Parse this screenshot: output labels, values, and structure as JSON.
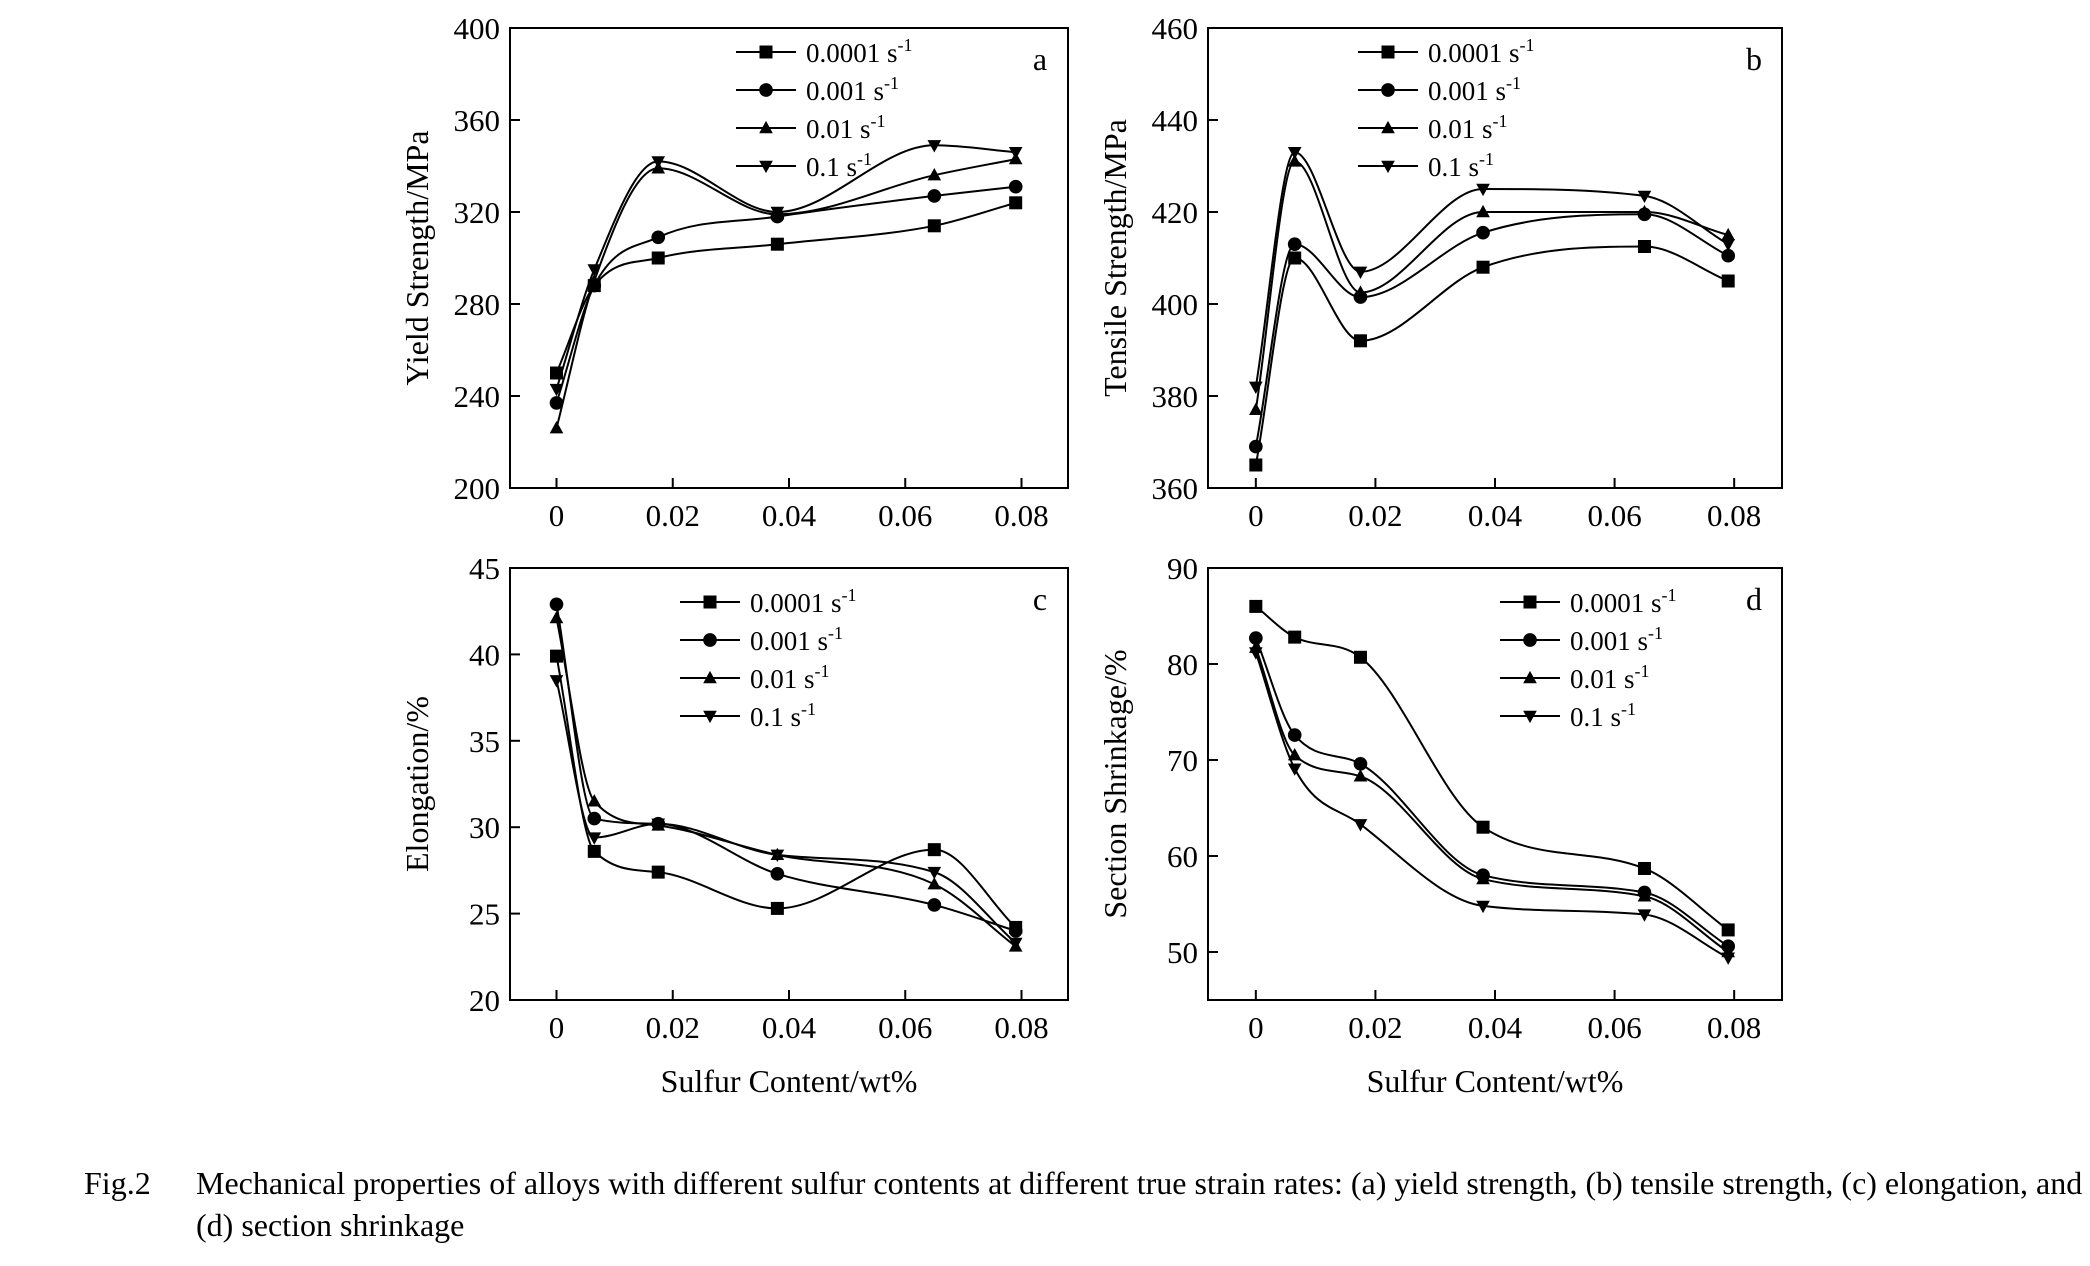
{
  "caption": {
    "label": "Fig.2",
    "text": "Mechanical properties of alloys with different sulfur contents at different true strain rates: (a) yield strength, (b) tensile strength, (c) elongation, and (d) section shrinkage"
  },
  "legend_entries": [
    "0.0001 s",
    "0.001 s",
    "0.01 s",
    "0.1 s"
  ],
  "legend_superscript": "-1",
  "chart_data": [
    {
      "type": "line",
      "panel_label": "a",
      "ylabel": "Yield Strength/MPa",
      "xlabel": "",
      "xlim": [
        -0.008,
        0.088
      ],
      "ylim": [
        200,
        400
      ],
      "xticks": [
        0,
        0.02,
        0.04,
        0.06,
        0.08
      ],
      "xtick_labels": [
        "0",
        "0.02",
        "0.04",
        "0.06",
        "0.08"
      ],
      "yticks": [
        200,
        240,
        280,
        320,
        360,
        400
      ],
      "ytick_labels": [
        "200",
        "240",
        "280",
        "320",
        "360",
        "400"
      ],
      "x": [
        0,
        0.0065,
        0.0175,
        0.038,
        0.065,
        0.079
      ],
      "series": [
        {
          "name": "0.0001 s-1",
          "marker": "square",
          "values": [
            250,
            288,
            300,
            306,
            314,
            324
          ]
        },
        {
          "name": "0.001 s-1",
          "marker": "circle",
          "values": [
            237,
            288,
            309,
            318,
            327,
            331
          ]
        },
        {
          "name": "0.01 s-1",
          "marker": "triangle-up",
          "values": [
            226,
            290,
            339,
            319,
            336,
            343
          ]
        },
        {
          "name": "0.1 s-1",
          "marker": "triangle-down",
          "values": [
            243,
            295,
            342,
            320,
            349,
            346
          ]
        }
      ],
      "legend_position": "top-center"
    },
    {
      "type": "line",
      "panel_label": "b",
      "ylabel": "Tensile Strength/MPa",
      "xlabel": "",
      "xlim": [
        -0.008,
        0.088
      ],
      "ylim": [
        360,
        460
      ],
      "xticks": [
        0,
        0.02,
        0.04,
        0.06,
        0.08
      ],
      "xtick_labels": [
        "0",
        "0.02",
        "0.04",
        "0.06",
        "0.08"
      ],
      "yticks": [
        360,
        380,
        400,
        420,
        440,
        460
      ],
      "ytick_labels": [
        "360",
        "380",
        "400",
        "420",
        "440",
        "460"
      ],
      "x": [
        0,
        0.0065,
        0.0175,
        0.038,
        0.065,
        0.079
      ],
      "series": [
        {
          "name": "0.0001 s-1",
          "marker": "square",
          "values": [
            365,
            410,
            392,
            408,
            412.5,
            405
          ]
        },
        {
          "name": "0.001 s-1",
          "marker": "circle",
          "values": [
            369,
            413,
            401.5,
            415.5,
            419.5,
            410.5
          ]
        },
        {
          "name": "0.01 s-1",
          "marker": "triangle-up",
          "values": [
            377,
            431,
            402.5,
            420,
            420,
            415
          ]
        },
        {
          "name": "0.1 s-1",
          "marker": "triangle-down",
          "values": [
            382,
            433,
            407,
            425,
            423.5,
            413
          ]
        }
      ],
      "legend_position": "top-center"
    },
    {
      "type": "line",
      "panel_label": "c",
      "ylabel": "Elongation/%",
      "xlabel": "Sulfur Content/wt%",
      "xlim": [
        -0.008,
        0.088
      ],
      "ylim": [
        20,
        45
      ],
      "xticks": [
        0,
        0.02,
        0.04,
        0.06,
        0.08
      ],
      "xtick_labels": [
        "0",
        "0.02",
        "0.04",
        "0.06",
        "0.08"
      ],
      "yticks": [
        20,
        25,
        30,
        35,
        40,
        45
      ],
      "ytick_labels": [
        "20",
        "25",
        "30",
        "35",
        "40",
        "45"
      ],
      "x": [
        0,
        0.0065,
        0.0175,
        0.038,
        0.065,
        0.079
      ],
      "series": [
        {
          "name": "0.0001 s-1",
          "marker": "square",
          "values": [
            39.9,
            28.6,
            27.4,
            25.3,
            28.7,
            24.2
          ]
        },
        {
          "name": "0.001 s-1",
          "marker": "circle",
          "values": [
            42.9,
            30.5,
            30.2,
            27.3,
            25.5,
            24.0
          ]
        },
        {
          "name": "0.01 s-1",
          "marker": "triangle-up",
          "values": [
            42.1,
            31.5,
            30.1,
            28.4,
            26.7,
            23.1
          ]
        },
        {
          "name": "0.1 s-1",
          "marker": "triangle-down",
          "values": [
            38.5,
            29.4,
            30.2,
            28.4,
            27.4,
            23.3
          ]
        }
      ],
      "legend_position": "top-center"
    },
    {
      "type": "line",
      "panel_label": "d",
      "ylabel": "Section Shrinkage/%",
      "xlabel": "Sulfur Content/wt%",
      "xlim": [
        -0.008,
        0.088
      ],
      "ylim": [
        45,
        90
      ],
      "xticks": [
        0,
        0.02,
        0.04,
        0.06,
        0.08
      ],
      "xtick_labels": [
        "0",
        "0.02",
        "0.04",
        "0.06",
        "0.08"
      ],
      "yticks": [
        50,
        60,
        70,
        80,
        90
      ],
      "ytick_labels": [
        "50",
        "60",
        "70",
        "80",
        "90"
      ],
      "x": [
        0,
        0.0065,
        0.0175,
        0.038,
        0.065,
        0.079
      ],
      "series": [
        {
          "name": "0.0001 s-1",
          "marker": "square",
          "values": [
            86.0,
            82.8,
            80.7,
            63.0,
            58.7,
            52.3
          ]
        },
        {
          "name": "0.001 s-1",
          "marker": "circle",
          "values": [
            82.7,
            72.6,
            69.6,
            58.0,
            56.2,
            50.6
          ]
        },
        {
          "name": "0.01 s-1",
          "marker": "triangle-up",
          "values": [
            81.7,
            70.5,
            68.3,
            57.6,
            55.8,
            50.0
          ]
        },
        {
          "name": "0.1 s-1",
          "marker": "triangle-down",
          "values": [
            81.2,
            69.1,
            63.3,
            54.8,
            53.9,
            49.4
          ]
        }
      ],
      "legend_position": "top-center"
    }
  ]
}
